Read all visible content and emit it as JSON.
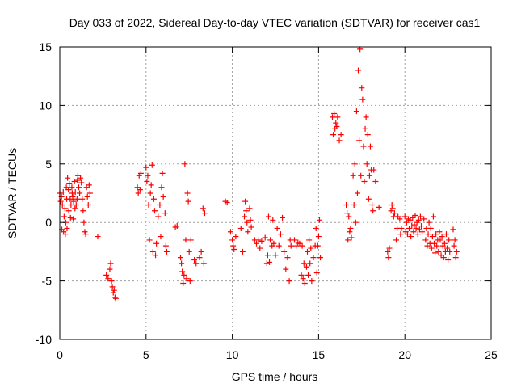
{
  "chart_data": {
    "type": "scatter",
    "title": "Day 033 of 2022, Sidereal Day-to-day VTEC variation (SDTVAR) for receiver cas1",
    "xlabel": "GPS time / hours",
    "ylabel": "SDTVAR / TECUs",
    "xlim": [
      0,
      25
    ],
    "ylim": [
      -10,
      15
    ],
    "xticks": [
      0,
      5,
      10,
      15,
      20,
      25
    ],
    "yticks": [
      -10,
      -5,
      0,
      5,
      10,
      15
    ],
    "grid": true,
    "marker": "+",
    "color": "#ff0000",
    "series": [
      {
        "name": "cas1",
        "points": [
          [
            0.0,
            2.5
          ],
          [
            0.05,
            1.8
          ],
          [
            0.1,
            2.2
          ],
          [
            0.12,
            -0.6
          ],
          [
            0.15,
            1.5
          ],
          [
            0.2,
            2.6
          ],
          [
            0.22,
            -0.8
          ],
          [
            0.25,
            0.5
          ],
          [
            0.3,
            1.2
          ],
          [
            0.32,
            -1.0
          ],
          [
            0.35,
            0.0
          ],
          [
            0.38,
            3.0
          ],
          [
            0.4,
            2.0
          ],
          [
            0.42,
            -0.5
          ],
          [
            0.45,
            3.8
          ],
          [
            0.5,
            2.8
          ],
          [
            0.52,
            1.0
          ],
          [
            0.55,
            3.3
          ],
          [
            0.6,
            2.0
          ],
          [
            0.62,
            0.4
          ],
          [
            0.65,
            1.5
          ],
          [
            0.7,
            3.0
          ],
          [
            0.72,
            2.5
          ],
          [
            0.75,
            2.2
          ],
          [
            0.78,
            0.3
          ],
          [
            0.8,
            1.8
          ],
          [
            0.85,
            3.5
          ],
          [
            0.88,
            1.2
          ],
          [
            0.9,
            2.6
          ],
          [
            0.95,
            1.5
          ],
          [
            1.0,
            2.0
          ],
          [
            1.02,
            3.6
          ],
          [
            1.05,
            4.0
          ],
          [
            1.1,
            3.0
          ],
          [
            1.15,
            2.5
          ],
          [
            1.2,
            3.8
          ],
          [
            1.25,
            3.4
          ],
          [
            1.3,
            2.0
          ],
          [
            1.35,
            1.0
          ],
          [
            1.4,
            0.0
          ],
          [
            1.45,
            -0.8
          ],
          [
            1.5,
            -1.0
          ],
          [
            1.55,
            3.0
          ],
          [
            1.6,
            2.2
          ],
          [
            1.65,
            1.5
          ],
          [
            1.7,
            3.2
          ],
          [
            1.75,
            2.5
          ],
          [
            2.2,
            -1.2
          ],
          [
            2.7,
            -4.5
          ],
          [
            2.8,
            -4.8
          ],
          [
            2.9,
            -4.0
          ],
          [
            2.95,
            -3.5
          ],
          [
            3.0,
            -5.0
          ],
          [
            3.05,
            -5.5
          ],
          [
            3.1,
            -6.0
          ],
          [
            3.15,
            -5.8
          ],
          [
            3.2,
            -6.4
          ],
          [
            3.25,
            -6.5
          ],
          [
            4.5,
            3.0
          ],
          [
            4.55,
            2.5
          ],
          [
            4.6,
            4.0
          ],
          [
            4.65,
            2.8
          ],
          [
            4.7,
            4.2
          ],
          [
            5.0,
            4.7
          ],
          [
            5.05,
            3.5
          ],
          [
            5.1,
            4.0
          ],
          [
            5.15,
            1.5
          ],
          [
            5.2,
            -1.5
          ],
          [
            5.25,
            2.5
          ],
          [
            5.3,
            3.2
          ],
          [
            5.35,
            4.9
          ],
          [
            5.4,
            -2.5
          ],
          [
            5.45,
            2.0
          ],
          [
            5.5,
            1.0
          ],
          [
            5.55,
            -2.8
          ],
          [
            5.6,
            -1.8
          ],
          [
            5.7,
            0.5
          ],
          [
            5.8,
            1.5
          ],
          [
            5.85,
            -1.2
          ],
          [
            5.9,
            3.0
          ],
          [
            5.95,
            4.2
          ],
          [
            6.0,
            2.2
          ],
          [
            6.1,
            0.8
          ],
          [
            6.15,
            -2.0
          ],
          [
            6.2,
            -2.5
          ],
          [
            6.7,
            -0.4
          ],
          [
            6.8,
            -0.3
          ],
          [
            7.0,
            -3.0
          ],
          [
            7.05,
            -3.5
          ],
          [
            7.1,
            -4.2
          ],
          [
            7.15,
            -5.2
          ],
          [
            7.2,
            -4.5
          ],
          [
            7.25,
            5.0
          ],
          [
            7.3,
            -1.5
          ],
          [
            7.35,
            -4.8
          ],
          [
            7.4,
            2.5
          ],
          [
            7.45,
            1.8
          ],
          [
            7.5,
            -2.5
          ],
          [
            7.55,
            -5.0
          ],
          [
            7.6,
            -1.5
          ],
          [
            7.8,
            -3.2
          ],
          [
            7.9,
            -3.5
          ],
          [
            8.1,
            -3.0
          ],
          [
            8.2,
            -2.5
          ],
          [
            8.3,
            1.2
          ],
          [
            8.35,
            -3.5
          ],
          [
            8.4,
            0.8
          ],
          [
            9.6,
            1.8
          ],
          [
            9.7,
            1.7
          ],
          [
            9.9,
            -0.8
          ],
          [
            10.0,
            -1.5
          ],
          [
            10.05,
            -2.0
          ],
          [
            10.1,
            -2.3
          ],
          [
            10.2,
            -1.2
          ],
          [
            10.5,
            -0.5
          ],
          [
            10.6,
            -2.5
          ],
          [
            10.7,
            0.5
          ],
          [
            10.75,
            1.8
          ],
          [
            10.8,
            1.0
          ],
          [
            10.85,
            0.0
          ],
          [
            10.9,
            -0.8
          ],
          [
            11.0,
            1.2
          ],
          [
            11.05,
            0.2
          ],
          [
            11.1,
            -0.4
          ],
          [
            11.3,
            -1.5
          ],
          [
            11.4,
            -1.8
          ],
          [
            11.5,
            -1.5
          ],
          [
            11.6,
            -2.2
          ],
          [
            11.7,
            -1.6
          ],
          [
            11.9,
            -1.3
          ],
          [
            12.0,
            -3.5
          ],
          [
            12.05,
            -2.8
          ],
          [
            12.1,
            0.5
          ],
          [
            12.15,
            -3.4
          ],
          [
            12.2,
            -1.5
          ],
          [
            12.3,
            -2.0
          ],
          [
            12.35,
            0.2
          ],
          [
            12.4,
            -1.8
          ],
          [
            12.5,
            -2.8
          ],
          [
            12.6,
            -0.5
          ],
          [
            12.7,
            -2.0
          ],
          [
            12.8,
            -1.0
          ],
          [
            12.9,
            0.4
          ],
          [
            13.0,
            -2.5
          ],
          [
            13.1,
            -4.0
          ],
          [
            13.2,
            -3.0
          ],
          [
            13.3,
            -5.0
          ],
          [
            13.35,
            -1.5
          ],
          [
            13.4,
            -2.0
          ],
          [
            13.6,
            -1.5
          ],
          [
            13.7,
            -2.0
          ],
          [
            13.8,
            -1.7
          ],
          [
            13.9,
            -1.8
          ],
          [
            14.0,
            -4.5
          ],
          [
            14.05,
            -2.0
          ],
          [
            14.1,
            -4.8
          ],
          [
            14.15,
            -3.5
          ],
          [
            14.2,
            -5.2
          ],
          [
            14.3,
            -3.8
          ],
          [
            14.35,
            -2.5
          ],
          [
            14.4,
            -4.5
          ],
          [
            14.45,
            -1.5
          ],
          [
            14.5,
            -3.5
          ],
          [
            14.55,
            -2.2
          ],
          [
            14.6,
            -5.0
          ],
          [
            14.7,
            -3.0
          ],
          [
            14.8,
            -2.0
          ],
          [
            14.85,
            -0.5
          ],
          [
            14.9,
            -4.3
          ],
          [
            14.95,
            -2.0
          ],
          [
            15.0,
            -1.2
          ],
          [
            15.05,
            0.2
          ],
          [
            15.1,
            -3.0
          ],
          [
            15.8,
            9.0
          ],
          [
            15.85,
            7.5
          ],
          [
            15.9,
            9.3
          ],
          [
            15.95,
            8.0
          ],
          [
            16.0,
            8.5
          ],
          [
            16.05,
            8.2
          ],
          [
            16.1,
            9.0
          ],
          [
            16.2,
            7.0
          ],
          [
            16.3,
            7.5
          ],
          [
            16.6,
            1.5
          ],
          [
            16.65,
            0.8
          ],
          [
            16.7,
            -1.5
          ],
          [
            16.75,
            0.5
          ],
          [
            16.8,
            -0.8
          ],
          [
            16.85,
            -0.5
          ],
          [
            16.9,
            -1.3
          ],
          [
            17.0,
            4.0
          ],
          [
            17.05,
            1.5
          ],
          [
            17.1,
            5.0
          ],
          [
            17.15,
            0.0
          ],
          [
            17.2,
            9.5
          ],
          [
            17.25,
            2.5
          ],
          [
            17.3,
            13.0
          ],
          [
            17.35,
            7.0
          ],
          [
            17.4,
            14.8
          ],
          [
            17.45,
            4.0
          ],
          [
            17.5,
            11.5
          ],
          [
            17.55,
            10.5
          ],
          [
            17.6,
            6.5
          ],
          [
            17.65,
            3.5
          ],
          [
            17.7,
            8.0
          ],
          [
            17.75,
            9.0
          ],
          [
            17.8,
            5.0
          ],
          [
            17.85,
            7.5
          ],
          [
            17.9,
            2.0
          ],
          [
            17.95,
            4.0
          ],
          [
            18.0,
            6.5
          ],
          [
            18.05,
            4.5
          ],
          [
            18.1,
            1.5
          ],
          [
            18.15,
            1.0
          ],
          [
            18.2,
            4.5
          ],
          [
            18.3,
            3.5
          ],
          [
            18.5,
            1.3
          ],
          [
            19.0,
            -2.5
          ],
          [
            19.05,
            -3.0
          ],
          [
            19.1,
            -2.2
          ],
          [
            19.2,
            1.0
          ],
          [
            19.25,
            1.5
          ],
          [
            19.3,
            1.2
          ],
          [
            19.35,
            0.5
          ],
          [
            19.4,
            0.8
          ],
          [
            19.5,
            -1.5
          ],
          [
            19.55,
            -0.5
          ],
          [
            19.6,
            0.5
          ],
          [
            19.7,
            0.3
          ],
          [
            19.75,
            -1.0
          ],
          [
            19.8,
            -0.5
          ],
          [
            20.0,
            0.5
          ],
          [
            20.05,
            -0.8
          ],
          [
            20.1,
            0.0
          ],
          [
            20.15,
            -1.0
          ],
          [
            20.2,
            0.3
          ],
          [
            20.25,
            -0.5
          ],
          [
            20.3,
            0.2
          ],
          [
            20.35,
            -1.2
          ],
          [
            20.4,
            -0.3
          ],
          [
            20.45,
            0.4
          ],
          [
            20.5,
            -0.8
          ],
          [
            20.55,
            -0.2
          ],
          [
            20.6,
            0.6
          ],
          [
            20.65,
            -0.5
          ],
          [
            20.7,
            0.0
          ],
          [
            20.75,
            -1.0
          ],
          [
            20.8,
            0.2
          ],
          [
            20.85,
            -0.6
          ],
          [
            20.9,
            0.5
          ],
          [
            20.95,
            -0.3
          ],
          [
            21.0,
            -0.8
          ],
          [
            21.1,
            0.3
          ],
          [
            21.2,
            -1.5
          ],
          [
            21.25,
            -0.5
          ],
          [
            21.3,
            -2.0
          ],
          [
            21.35,
            -1.0
          ],
          [
            21.4,
            0.0
          ],
          [
            21.45,
            -1.8
          ],
          [
            21.5,
            -0.5
          ],
          [
            21.55,
            -2.2
          ],
          [
            21.6,
            -1.2
          ],
          [
            21.65,
            0.5
          ],
          [
            21.7,
            -1.8
          ],
          [
            21.75,
            -2.6
          ],
          [
            21.8,
            -1.0
          ],
          [
            21.85,
            -2.0
          ],
          [
            21.9,
            -1.5
          ],
          [
            21.95,
            -2.5
          ],
          [
            22.0,
            -0.8
          ],
          [
            22.05,
            -1.5
          ],
          [
            22.1,
            -2.8
          ],
          [
            22.15,
            -1.2
          ],
          [
            22.2,
            -2.0
          ],
          [
            22.25,
            -3.0
          ],
          [
            22.3,
            -1.8
          ],
          [
            22.35,
            -2.5
          ],
          [
            22.4,
            -1.0
          ],
          [
            22.45,
            -2.2
          ],
          [
            22.5,
            -3.2
          ],
          [
            22.55,
            -1.5
          ],
          [
            22.6,
            -2.5
          ],
          [
            22.8,
            -0.6
          ],
          [
            22.85,
            -2.0
          ],
          [
            22.9,
            -1.5
          ],
          [
            22.95,
            -3.0
          ],
          [
            23.0,
            -2.5
          ]
        ]
      }
    ]
  }
}
